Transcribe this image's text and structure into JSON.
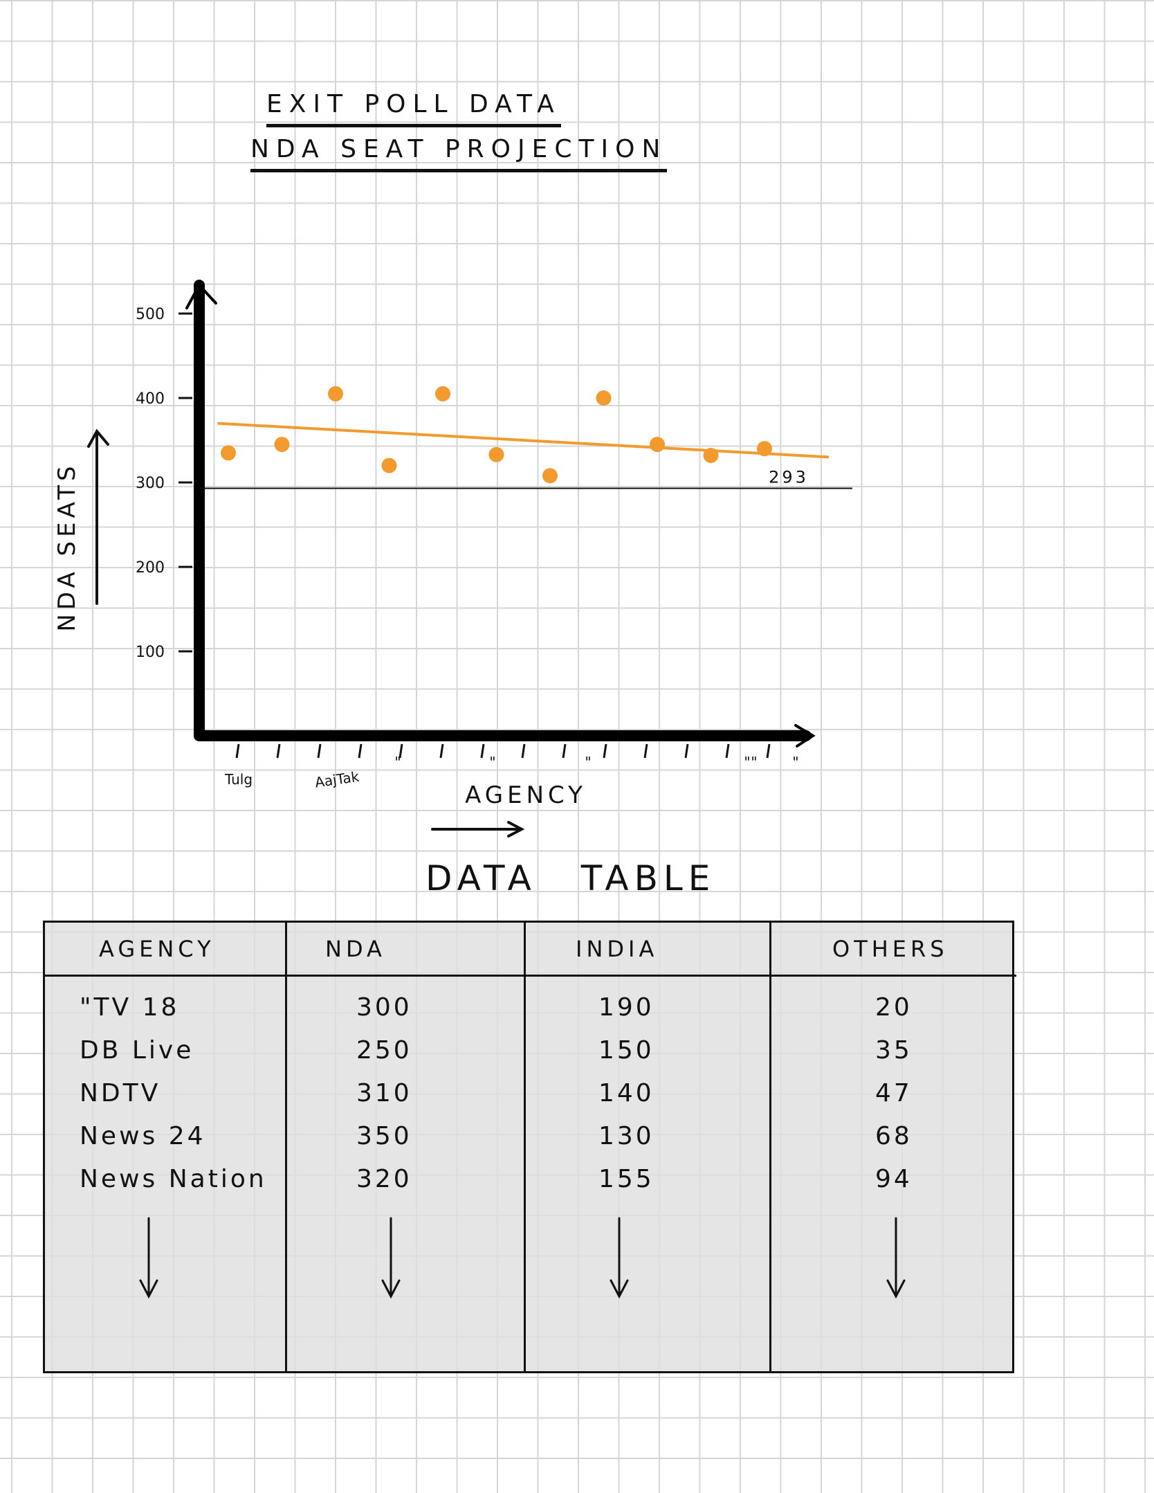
{
  "titles": {
    "line1": "EXIT POLL DATA",
    "line2": "NDA SEAT PROJECTION"
  },
  "chart_data": {
    "type": "scatter",
    "ylabel": "NDA SEATS",
    "xlabel": "AGENCY",
    "ylim": [
      0,
      500
    ],
    "yticks": [
      "100",
      "200",
      "300",
      "400",
      "500"
    ],
    "x_tick_labels": [
      "Tulg",
      "AajTak",
      "\"",
      "\"",
      "\"",
      "\"",
      "\"",
      "\""
    ],
    "points": [
      {
        "x": 1,
        "y": 335
      },
      {
        "x": 2,
        "y": 345
      },
      {
        "x": 3,
        "y": 405
      },
      {
        "x": 4,
        "y": 320
      },
      {
        "x": 5,
        "y": 405
      },
      {
        "x": 6,
        "y": 333
      },
      {
        "x": 7,
        "y": 308
      },
      {
        "x": 8,
        "y": 400
      },
      {
        "x": 9,
        "y": 345
      },
      {
        "x": 10,
        "y": 332
      },
      {
        "x": 11,
        "y": 340
      }
    ],
    "trend_line": {
      "from": [
        0.8,
        370
      ],
      "to": [
        12.2,
        330
      ]
    },
    "reference_line": {
      "y": 293,
      "label": "293"
    },
    "grid": false,
    "color": "#f29a2e"
  },
  "table": {
    "title": "DATA TABLE",
    "headers": [
      "AGENCY",
      "NDA",
      "INDIA",
      "OTHERS"
    ],
    "rows": [
      [
        "\"TV 18",
        "300",
        "190",
        "20"
      ],
      [
        "DB Live",
        "250",
        "150",
        "35"
      ],
      [
        "NDTV",
        "310",
        "140",
        "47"
      ],
      [
        "News 24",
        "350",
        "130",
        "68"
      ],
      [
        "News Nation",
        "320",
        "155",
        "94"
      ]
    ]
  }
}
